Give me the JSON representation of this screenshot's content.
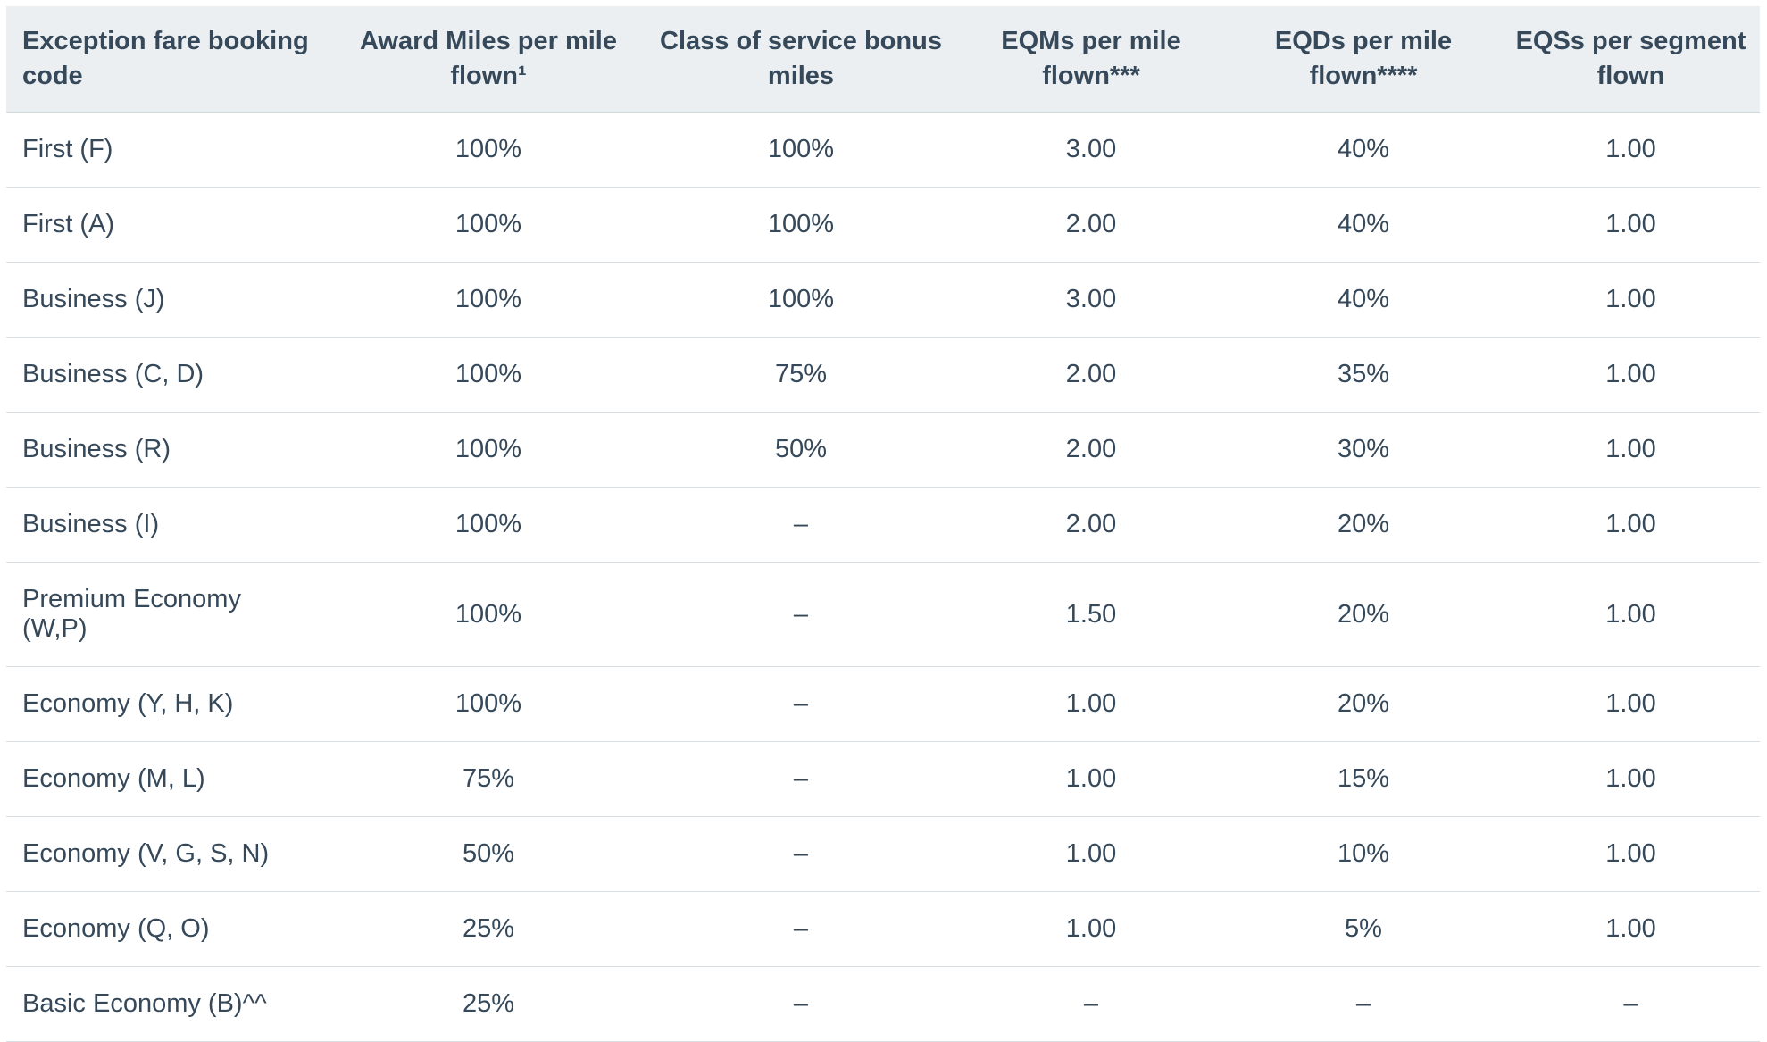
{
  "colors": {
    "text_color": "#36495a",
    "header_bg": "#eceff1",
    "divider": "#d6dee3",
    "header_divider": "#cfd8dd",
    "page_bg": "#ffffff"
  },
  "table": {
    "columns": [
      {
        "label": "Exception fare booking code"
      },
      {
        "label": "Award Miles per mile flown¹"
      },
      {
        "label": "Class of service bonus miles"
      },
      {
        "label": "EQMs per mile flown***"
      },
      {
        "label": "EQDs per mile flown****"
      },
      {
        "label": "EQSs per segment flown"
      }
    ],
    "rows": [
      [
        "First (F)",
        "100%",
        "100%",
        "3.00",
        "40%",
        "1.00"
      ],
      [
        "First (A)",
        "100%",
        "100%",
        "2.00",
        "40%",
        "1.00"
      ],
      [
        "Business (J)",
        "100%",
        "100%",
        "3.00",
        "40%",
        "1.00"
      ],
      [
        "Business (C, D)",
        "100%",
        "75%",
        "2.00",
        "35%",
        "1.00"
      ],
      [
        "Business (R)",
        "100%",
        "50%",
        "2.00",
        "30%",
        "1.00"
      ],
      [
        "Business (I)",
        "100%",
        "–",
        "2.00",
        "20%",
        "1.00"
      ],
      [
        "Premium Economy (W,P)",
        "100%",
        "–",
        "1.50",
        "20%",
        "1.00"
      ],
      [
        "Economy (Y, H, K)",
        "100%",
        "–",
        "1.00",
        "20%",
        "1.00"
      ],
      [
        "Economy (M, L)",
        "75%",
        "–",
        "1.00",
        "15%",
        "1.00"
      ],
      [
        "Economy (V, G, S, N)",
        "50%",
        "–",
        "1.00",
        "10%",
        "1.00"
      ],
      [
        "Economy (Q, O)",
        "25%",
        "–",
        "1.00",
        "5%",
        "1.00"
      ],
      [
        "Basic Economy (B)^^",
        "25%",
        "–",
        "–",
        "–",
        "–"
      ]
    ]
  }
}
